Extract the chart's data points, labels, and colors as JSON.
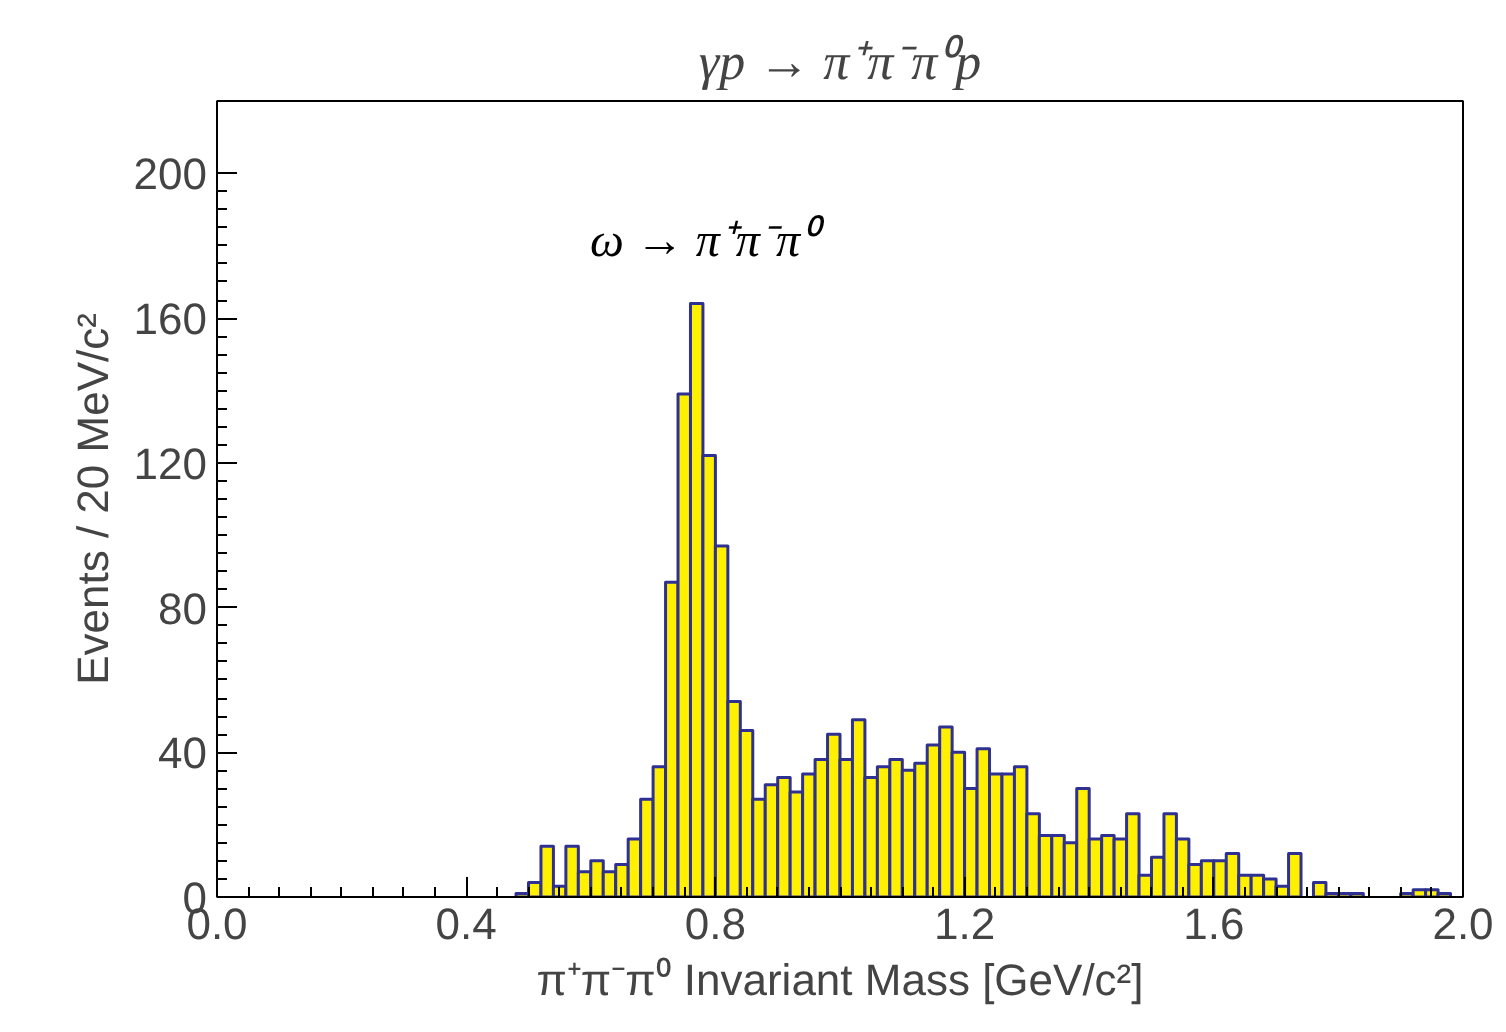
{
  "chart_data": {
    "type": "histogram",
    "title": "γp → π⁺π⁻π⁰p",
    "xlabel": "π⁺π⁻π⁰ Invariant Mass [GeV/c²]",
    "ylabel": "Events / 20 MeV/c²",
    "annotations": [
      {
        "text": "ω → π⁺π⁻π⁰",
        "x": 0.78,
        "y": 164
      }
    ],
    "color": "#fff000",
    "bins": [
      0.0,
      0.02,
      0.04,
      0.06,
      0.08,
      0.1,
      0.12,
      0.14,
      0.16,
      0.18,
      0.2,
      0.22,
      0.24,
      0.26,
      0.28,
      0.3,
      0.32,
      0.34,
      0.36,
      0.38,
      0.4,
      0.42,
      0.44,
      0.46,
      0.48,
      0.5,
      0.52,
      0.54,
      0.56,
      0.58,
      0.6,
      0.62,
      0.64,
      0.66,
      0.68,
      0.7,
      0.72,
      0.74,
      0.76,
      0.78,
      0.8,
      0.82,
      0.84,
      0.86,
      0.88,
      0.9,
      0.92,
      0.94,
      0.96,
      0.98,
      1.0,
      1.02,
      1.04,
      1.06,
      1.08,
      1.1,
      1.12,
      1.14,
      1.16,
      1.18,
      1.2,
      1.22,
      1.24,
      1.26,
      1.28,
      1.3,
      1.32,
      1.34,
      1.36,
      1.38,
      1.4,
      1.42,
      1.44,
      1.46,
      1.48,
      1.5,
      1.52,
      1.54,
      1.56,
      1.58,
      1.6,
      1.62,
      1.64,
      1.66,
      1.68,
      1.7,
      1.72,
      1.74,
      1.76,
      1.78,
      1.8,
      1.82,
      1.84,
      1.86,
      1.88,
      1.9,
      1.92,
      1.94,
      1.96,
      1.98,
      2.0
    ],
    "values": [
      0,
      0,
      0,
      0,
      0,
      0,
      0,
      0,
      0,
      0,
      0,
      0,
      0,
      0,
      0,
      0,
      0,
      0,
      0,
      0,
      0,
      0,
      0,
      0,
      1,
      4,
      14,
      3,
      14,
      7,
      10,
      7,
      9,
      16,
      27,
      36,
      87,
      139,
      164,
      122,
      97,
      54,
      46,
      27,
      31,
      33,
      29,
      34,
      38,
      45,
      38,
      49,
      33,
      36,
      38,
      35,
      37,
      42,
      47,
      40,
      30,
      41,
      34,
      34,
      36,
      23,
      17,
      17,
      15,
      30,
      16,
      17,
      16,
      23,
      6,
      11,
      23,
      16,
      9,
      10,
      10,
      12,
      6,
      6,
      5,
      3,
      12,
      0,
      4,
      1,
      1,
      1,
      0,
      0,
      0,
      1,
      2,
      2,
      1,
      0
    ],
    "xlim": [
      0,
      2
    ],
    "ylim": [
      0,
      220
    ],
    "xticks": [
      {
        "value": 0,
        "label": "0.0"
      },
      {
        "value": 0.4,
        "label": "0.4"
      },
      {
        "value": 0.8,
        "label": "0.8"
      },
      {
        "value": 1.2,
        "label": "1.2"
      },
      {
        "value": 1.6,
        "label": "1.6"
      },
      {
        "value": 2,
        "label": "2.0"
      }
    ],
    "yticks": [
      0,
      40,
      80,
      120,
      160,
      200
    ]
  }
}
